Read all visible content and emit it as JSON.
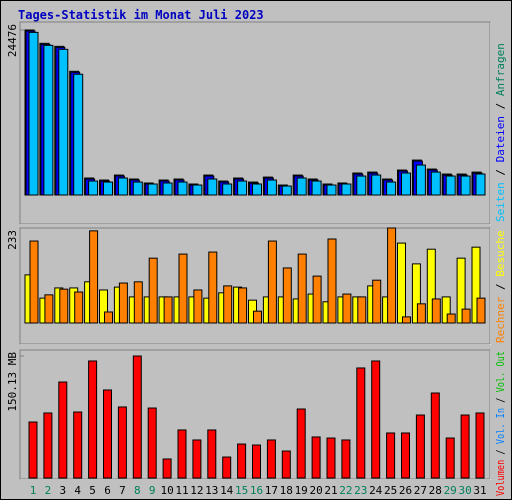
{
  "chart_data": [
    {
      "type": "bar",
      "title": "Tages-Statistik im Monat Juli 2023",
      "ylim": [
        0,
        24476
      ],
      "yticks": [
        24476
      ],
      "legend_separator": " / ",
      "series": [
        {
          "name": "Anfragen",
          "color": "#00805c",
          "values": [
            24476,
            22500,
            22050,
            18350,
            2520,
            2220,
            2960,
            2370,
            1780,
            2220,
            2370,
            1630,
            2960,
            2070,
            2520,
            1920,
            2660,
            1480,
            2960,
            2370,
            1630,
            1780,
            3260,
            3400,
            2370,
            3700,
            5180,
            3850,
            3110,
            3110,
            3400
          ]
        },
        {
          "name": "Dateien",
          "color": "#0000ff",
          "values": [
            24326,
            22350,
            21900,
            18200,
            2370,
            2070,
            2810,
            2220,
            1630,
            2070,
            2220,
            1480,
            2810,
            1920,
            2370,
            1770,
            2510,
            1330,
            2810,
            2220,
            1480,
            1630,
            3110,
            3250,
            2220,
            3550,
            5030,
            3700,
            2960,
            2960,
            3250
          ]
        },
        {
          "name": "Seiten",
          "color": "#00c0ff",
          "values": [
            24120,
            22200,
            21610,
            17910,
            2070,
            1920,
            2520,
            1920,
            1630,
            1780,
            1920,
            1480,
            2370,
            1630,
            2070,
            1630,
            2220,
            1330,
            2520,
            2070,
            1480,
            1630,
            2810,
            2960,
            1920,
            3260,
            4440,
            3400,
            2810,
            2810,
            3110
          ]
        }
      ]
    },
    {
      "type": "bar",
      "ylim": [
        0,
        233
      ],
      "yticks": [
        233
      ],
      "legend_separator": " / ",
      "series": [
        {
          "name": "Besuche",
          "color": "#ffff00",
          "values": [
            118,
            61,
            86,
            86,
            101,
            81,
            88,
            64,
            64,
            64,
            64,
            64,
            61,
            74,
            88,
            56,
            64,
            64,
            59,
            71,
            52,
            64,
            64,
            91,
            64,
            196,
            145,
            181,
            64,
            159,
            186
          ]
        },
        {
          "name": "Rechner",
          "color": "#ff8000",
          "values": [
            201,
            69,
            83,
            76,
            226,
            27,
            98,
            101,
            159,
            64,
            169,
            81,
            174,
            91,
            86,
            29,
            201,
            135,
            169,
            115,
            206,
            71,
            64,
            105,
            233,
            15,
            47,
            59,
            22,
            34,
            61
          ]
        }
      ]
    },
    {
      "type": "bar",
      "ylim": [
        0,
        150.13
      ],
      "yticks": [
        {
          "value": 150.13,
          "label": "150.13 MB"
        }
      ],
      "legend_separator": " / ",
      "categories": [
        "1",
        "2",
        "3",
        "4",
        "5",
        "6",
        "7",
        "8",
        "9",
        "10",
        "11",
        "12",
        "13",
        "14",
        "15",
        "16",
        "17",
        "18",
        "19",
        "20",
        "21",
        "22",
        "23",
        "24",
        "25",
        "26",
        "27",
        "28",
        "29",
        "30",
        "31"
      ],
      "category_colors": [
        "#00805c",
        "#00805c",
        "#000000",
        "#000000",
        "#000000",
        "#000000",
        "#000000",
        "#00805c",
        "#00805c",
        "#000000",
        "#000000",
        "#000000",
        "#000000",
        "#000000",
        "#00805c",
        "#00805c",
        "#000000",
        "#000000",
        "#000000",
        "#000000",
        "#000000",
        "#00805c",
        "#00805c",
        "#000000",
        "#000000",
        "#000000",
        "#000000",
        "#000000",
        "#00805c",
        "#00805c",
        "#000000"
      ],
      "series": [
        {
          "name": "Volumen",
          "color": "#ff0000",
          "values": [
            68.9,
            80.0,
            118.1,
            81.2,
            144.0,
            108.3,
            87.4,
            150.13,
            86.1,
            23.4,
            59.1,
            46.8,
            59.1,
            25.8,
            41.8,
            40.6,
            46.8,
            33.2,
            84.9,
            50.5,
            49.2,
            46.8,
            135.4,
            144.0,
            55.4,
            55.4,
            77.5,
            104.6,
            49.2,
            77.5,
            80.0
          ]
        }
      ],
      "extra_legend": [
        {
          "name": "Vol. In",
          "color": "#0080ff"
        },
        {
          "name": "Vol. Out",
          "color": "#00c000"
        }
      ]
    }
  ]
}
